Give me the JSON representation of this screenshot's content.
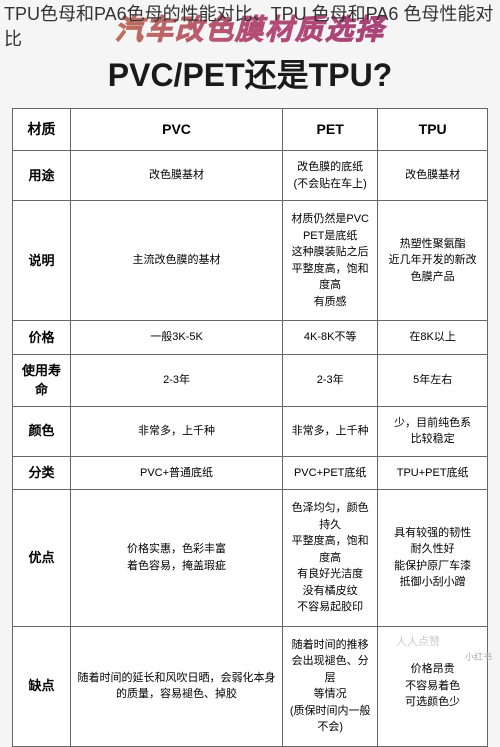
{
  "overlay": "TPU色母和PA6色母的性能对比、TPU 色母和PA6 色母性能对比",
  "header": {
    "title": "汽车改色膜材质选择",
    "subtitle": "PVC/PET还是TPU?"
  },
  "table": {
    "cols": [
      "材质",
      "PVC",
      "PET",
      "TPU"
    ],
    "rows": [
      {
        "label": "用途",
        "c1": "改色膜基材",
        "c2": "改色膜的底纸\n(不会贴在车上)",
        "c3": "改色膜基材"
      },
      {
        "label": "说明",
        "c1": "主流改色膜的基材",
        "c2": "材质仍然是PVC\nPET是底纸\n这种膜装贴之后\n平整度高，饱和度高\n有质感",
        "c3": "热塑性聚氨酯\n近几年开发的新改色膜产品"
      },
      {
        "label": "价格",
        "c1": "一般3K-5K",
        "c2": "4K-8K不等",
        "c3": "在8K以上"
      },
      {
        "label": "使用寿命",
        "c1": "2-3年",
        "c2": "2-3年",
        "c3": "5年左右"
      },
      {
        "label": "颜色",
        "c1": "非常多，上千种",
        "c2": "非常多，上千种",
        "c3": "少，目前纯色系\n比较稳定"
      },
      {
        "label": "分类",
        "c1": "PVC+普通底纸",
        "c2": "PVC+PET底纸",
        "c3": "TPU+PET底纸"
      },
      {
        "label": "优点",
        "c1": "价格实惠，色彩丰富\n着色容易，掩盖瑕疵",
        "c2": "色泽均匀，颜色持久\n平整度高，饱和度高\n有良好光洁度\n没有橘皮纹\n不容易起胶印",
        "c3": "具有较强的韧性\n耐久性好\n能保护原厂车漆\n抵御小刮小蹭"
      },
      {
        "label": "缺点",
        "c1": "随着时间的延长和风吹日晒，会弱化本身的质量，容易褪色、掉胶",
        "c2": "随着时间的推移\n会出现褪色、分层\n等情况\n(质保时间内一般不会)",
        "c3": "价格昂贵\n不容易着色\n可选颜色少"
      }
    ]
  },
  "watermarks": {
    "w1": "小红书",
    "w2": "人人点赞"
  },
  "styling": {
    "body_bg": "#f5f5f5",
    "table_bg": "#ffffff",
    "border_color": "#666666",
    "gradient_start": "#e8a854",
    "gradient_mid": "#d45a8a",
    "gradient_end": "#b84590",
    "title_fontsize": 28,
    "subtitle_fontsize": 32,
    "cell_fontsize": 11,
    "header_fontsize": 14,
    "label_fontsize": 13
  }
}
